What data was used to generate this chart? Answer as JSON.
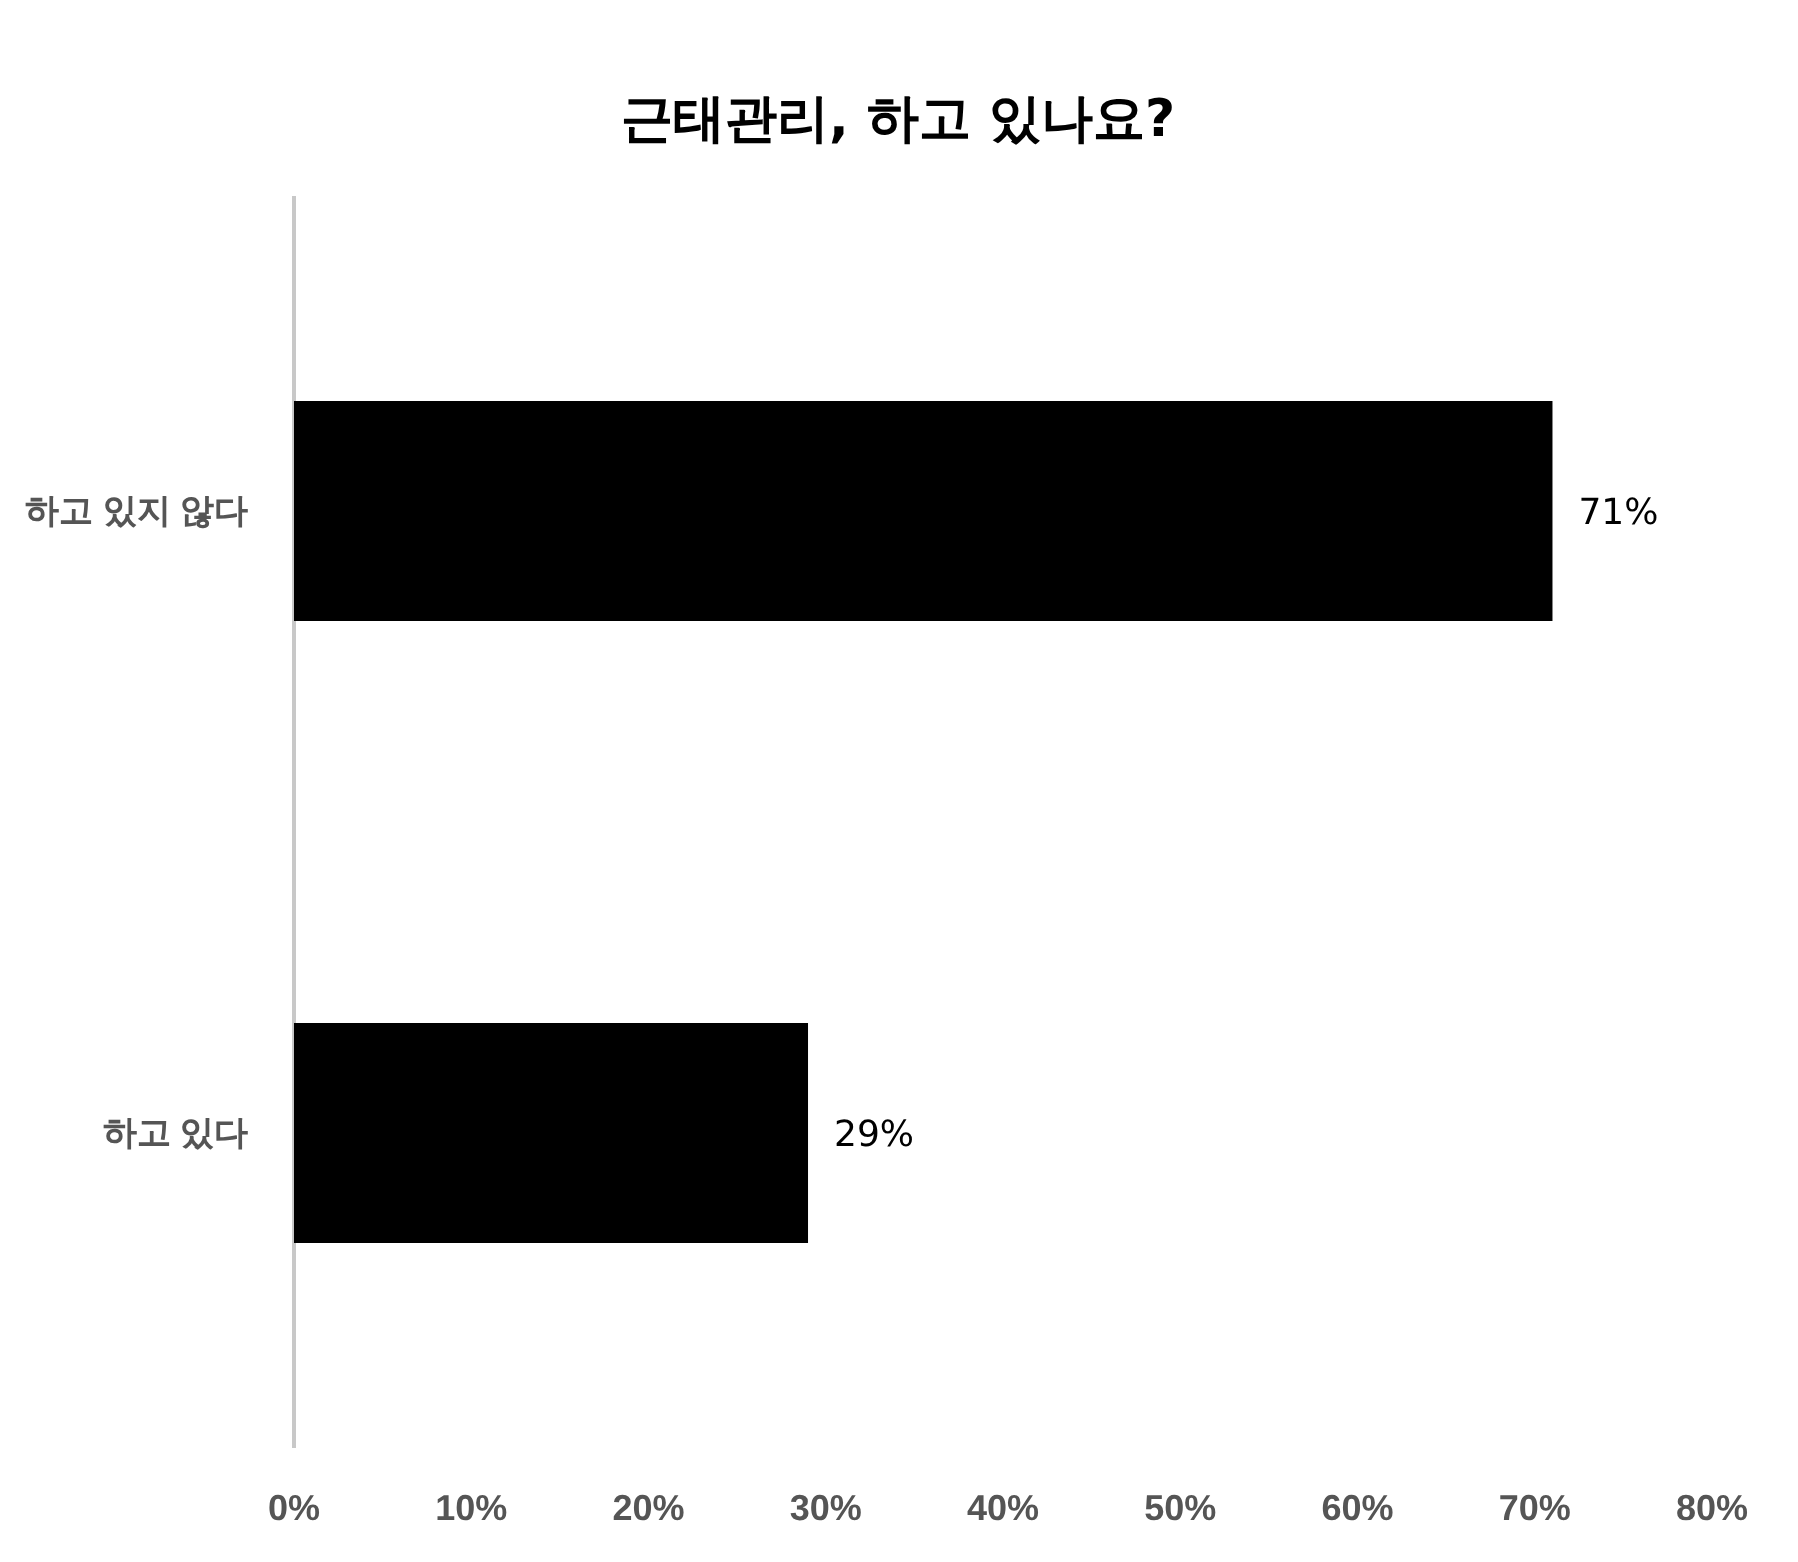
{
  "chart_data": {
    "type": "bar",
    "orientation": "horizontal",
    "title": "근태관리, 하고 있나요?",
    "categories": [
      "하고 있지 않다",
      "하고 있다"
    ],
    "values": [
      71,
      29
    ],
    "color": "#000000",
    "value_labels": [
      "71%",
      "29%"
    ],
    "xlim": [
      0,
      80
    ],
    "xticks": [
      {
        "value": 0,
        "label": "0%"
      },
      {
        "value": 10,
        "label": "10%"
      },
      {
        "value": 20,
        "label": "20%"
      },
      {
        "value": 30,
        "label": "30%"
      },
      {
        "value": 40,
        "label": "40%"
      },
      {
        "value": 50,
        "label": "50%"
      },
      {
        "value": 60,
        "label": "60%"
      },
      {
        "value": 70,
        "label": "70%"
      },
      {
        "value": 80,
        "label": "80%"
      }
    ],
    "grid": false
  }
}
